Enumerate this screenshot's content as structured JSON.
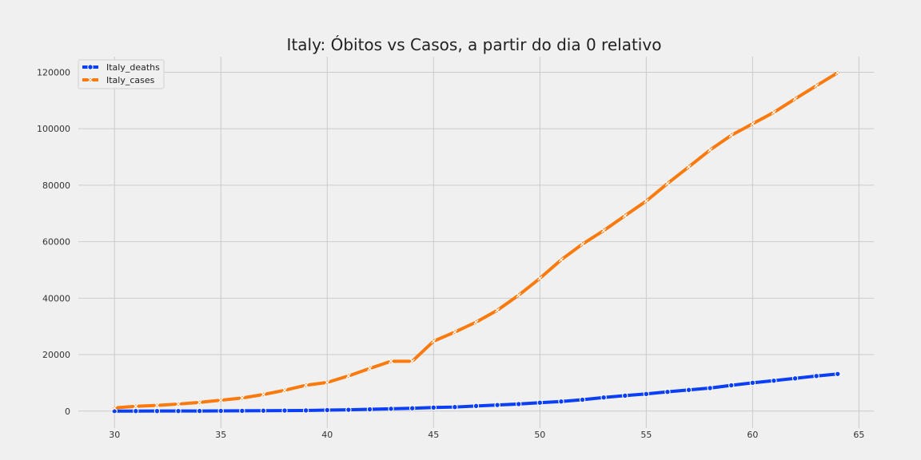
{
  "chart_data": {
    "type": "line",
    "title": "Italy: Óbitos vs Casos, a partir do dia 0 relativo",
    "xlabel": "",
    "ylabel": "",
    "xlim": [
      28.3,
      65.7
    ],
    "ylim": [
      -6000,
      125500
    ],
    "xticks": [
      30,
      35,
      40,
      45,
      50,
      55,
      60,
      65
    ],
    "yticks": [
      0,
      20000,
      40000,
      60000,
      80000,
      100000,
      120000
    ],
    "grid": true,
    "legend_position": "top-left",
    "x": [
      30,
      31,
      32,
      33,
      34,
      35,
      36,
      37,
      38,
      39,
      40,
      41,
      42,
      43,
      44,
      45,
      46,
      47,
      48,
      49,
      50,
      51,
      52,
      53,
      54,
      55,
      56,
      57,
      58,
      59,
      60,
      61,
      62,
      63,
      64
    ],
    "series": [
      {
        "name": "Italy_deaths",
        "color": "#0b3ff5",
        "marker": "circle",
        "values": [
          17,
          21,
          29,
          34,
          52,
          79,
          107,
          148,
          197,
          233,
          366,
          463,
          631,
          827,
          1016,
          1266,
          1441,
          1809,
          2158,
          2503,
          2978,
          3405,
          4032,
          4825,
          5476,
          6077,
          6820,
          7503,
          8165,
          9134,
          10023,
          10779,
          11591,
          12428,
          13155
        ]
      },
      {
        "name": "Italy_cases",
        "color": "#fa7a0e",
        "marker": "x",
        "values": [
          1128,
          1694,
          2036,
          2502,
          3089,
          3858,
          4636,
          5883,
          7375,
          9172,
          10149,
          12462,
          15113,
          17660,
          17660,
          24747,
          27980,
          31506,
          35713,
          41035,
          47021,
          53578,
          59138,
          63927,
          69176,
          74386,
          80589,
          86498,
          92472,
          97689,
          101739,
          105792,
          110574,
          115242,
          119827
        ]
      }
    ]
  }
}
